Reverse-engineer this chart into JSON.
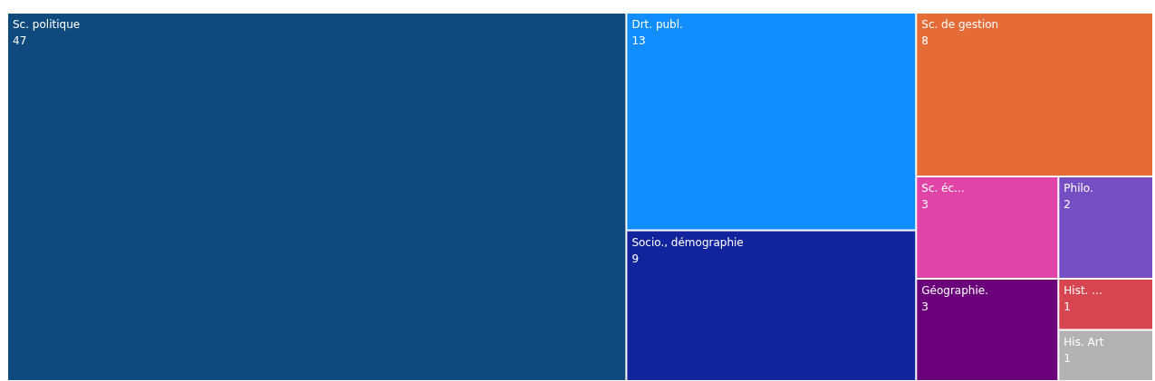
{
  "chart_data": {
    "type": "other",
    "categories": [
      "Sc. politique",
      "Drt. publ.",
      "Socio., démographie",
      "Sc. de gestion",
      "Sc. éc...",
      "Géographie.",
      "Philo.",
      "Hist. ...",
      "His. Art"
    ],
    "values": [
      47,
      13,
      9,
      8,
      3,
      3,
      2,
      1,
      1
    ],
    "colors": [
      "#0e4a7d",
      "#118dff",
      "#12239e",
      "#e66c37",
      "#e044a7",
      "#6b007b",
      "#744ec2",
      "#d64550",
      "#b3b3b3"
    ],
    "data_labels": true
  }
}
